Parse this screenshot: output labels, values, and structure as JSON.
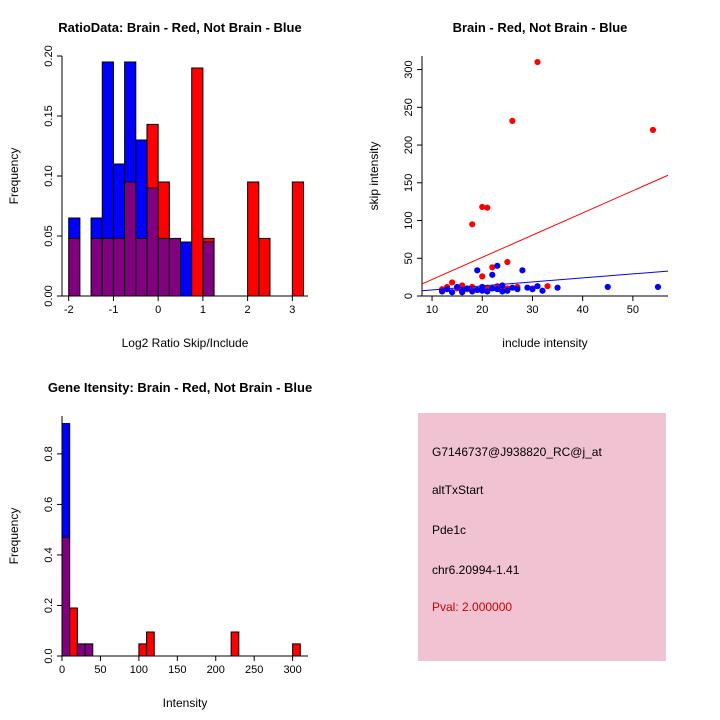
{
  "figure_bg": "#ffffff",
  "colors": {
    "red": "#FF0000",
    "blue": "#0000FF",
    "overlap": "#800080",
    "axis": "#000000"
  },
  "chart_data": [
    {
      "type": "bar",
      "kind": "overlaid-histogram",
      "title": "RatioData: Brain - Red, Not Brain - Blue",
      "xlabel": "Log2 Ratio Skip/Include",
      "ylabel": "Frequency",
      "xlim": [
        -2.15,
        3.35
      ],
      "ylim": [
        0,
        0.2
      ],
      "xticks": [
        -2,
        -1,
        0,
        1,
        2,
        3
      ],
      "xtick_labels": [
        "-2",
        "-1",
        "0",
        "1",
        "2",
        "3"
      ],
      "yticks": [
        0,
        0.05,
        0.1,
        0.15,
        0.2
      ],
      "ytick_labels": [
        "0.00",
        "0.05",
        "0.10",
        "0.15",
        "0.20"
      ],
      "grid": false,
      "bin_width": 0.25,
      "overlap_color": "#800080",
      "series": [
        {
          "name": "Brain",
          "color": "#FF0000"
        },
        {
          "name": "Not Brain",
          "color": "#0000FF"
        }
      ],
      "bins": [
        {
          "x": -2.0,
          "blue": 0.065,
          "red": 0.048
        },
        {
          "x": -1.5,
          "blue": 0.065,
          "red": 0.048
        },
        {
          "x": -1.25,
          "blue": 0.195,
          "red": 0.048
        },
        {
          "x": -1.0,
          "blue": 0.11,
          "red": 0.048
        },
        {
          "x": -0.75,
          "blue": 0.195,
          "red": 0.095
        },
        {
          "x": -0.5,
          "blue": 0.13,
          "red": 0.048
        },
        {
          "x": -0.25,
          "blue": 0.09,
          "red": 0.143
        },
        {
          "x": 0.0,
          "blue": 0.048,
          "red": 0.095
        },
        {
          "x": 0.25,
          "blue": 0.048,
          "red": 0.048
        },
        {
          "x": 0.5,
          "blue": 0.045,
          "red": 0
        },
        {
          "x": 0.75,
          "blue": 0,
          "red": 0.19
        },
        {
          "x": 1.0,
          "blue": 0.045,
          "red": 0.048
        },
        {
          "x": 2.0,
          "blue": 0,
          "red": 0.095
        },
        {
          "x": 2.25,
          "blue": 0,
          "red": 0.048
        },
        {
          "x": 3.0,
          "blue": 0,
          "red": 0.095
        }
      ]
    },
    {
      "type": "scatter",
      "title": "Brain - Red, Not Brain - Blue",
      "xlabel": "include intensity",
      "ylabel": "skip intensity",
      "xlim": [
        8,
        57
      ],
      "ylim": [
        0,
        318
      ],
      "xticks": [
        10,
        20,
        30,
        40,
        50
      ],
      "xtick_labels": [
        "10",
        "20",
        "30",
        "40",
        "50"
      ],
      "yticks": [
        0,
        50,
        100,
        150,
        200,
        250,
        300
      ],
      "ytick_labels": [
        "0",
        "50",
        "100",
        "150",
        "200",
        "250",
        "300"
      ],
      "grid": false,
      "series": [
        {
          "name": "Brain",
          "color": "#FF0000",
          "points": [
            [
              31,
              310
            ],
            [
              26,
              232
            ],
            [
              54,
              220
            ],
            [
              20,
              118
            ],
            [
              21,
              117
            ],
            [
              18,
              95
            ],
            [
              25,
              45
            ],
            [
              22,
              38
            ],
            [
              20,
              26
            ],
            [
              12,
              9
            ],
            [
              13,
              12
            ],
            [
              14,
              18
            ],
            [
              15,
              10
            ],
            [
              16,
              14
            ],
            [
              17,
              9
            ],
            [
              18,
              12
            ],
            [
              19,
              8
            ],
            [
              21,
              11
            ],
            [
              23,
              13
            ],
            [
              24,
              9
            ],
            [
              25,
              10
            ],
            [
              27,
              12
            ],
            [
              30,
              10
            ],
            [
              33,
              13
            ]
          ]
        },
        {
          "name": "Not Brain",
          "color": "#0000FF",
          "points": [
            [
              12,
              6
            ],
            [
              13,
              9
            ],
            [
              14,
              5
            ],
            [
              15,
              12
            ],
            [
              16,
              7
            ],
            [
              16,
              5
            ],
            [
              17,
              10
            ],
            [
              18,
              6
            ],
            [
              19,
              34
            ],
            [
              19,
              8
            ],
            [
              20,
              12
            ],
            [
              20,
              7
            ],
            [
              21,
              6
            ],
            [
              22,
              28
            ],
            [
              22,
              10
            ],
            [
              23,
              40
            ],
            [
              23,
              9
            ],
            [
              24,
              14
            ],
            [
              24,
              6
            ],
            [
              25,
              7
            ],
            [
              26,
              11
            ],
            [
              27,
              9
            ],
            [
              28,
              34
            ],
            [
              29,
              11
            ],
            [
              30,
              9
            ],
            [
              31,
              13
            ],
            [
              32,
              7
            ],
            [
              35,
              11
            ],
            [
              45,
              12
            ],
            [
              55,
              12
            ]
          ]
        }
      ],
      "lines": [
        {
          "name": "brain-fit-line",
          "color": "#FF0000",
          "x1": 8,
          "y1": 16,
          "x2": 57,
          "y2": 160
        },
        {
          "name": "not-brain-fit-line",
          "color": "#0000FF",
          "x1": 8,
          "y1": 7,
          "x2": 57,
          "y2": 33
        }
      ]
    },
    {
      "type": "bar",
      "kind": "overlaid-histogram",
      "title": "Gene Itensity: Brain - Red, Not Brain - Blue",
      "xlabel": "Intensity",
      "ylabel": "Frequency",
      "xlim": [
        0,
        320
      ],
      "ylim": [
        0,
        0.95
      ],
      "xticks": [
        0,
        50,
        100,
        150,
        200,
        250,
        300
      ],
      "xtick_labels": [
        "0",
        "50",
        "100",
        "150",
        "200",
        "250",
        "300"
      ],
      "yticks": [
        0,
        0.2,
        0.4,
        0.6,
        0.8
      ],
      "ytick_labels": [
        "0.0",
        "0.2",
        "0.4",
        "0.6",
        "0.8"
      ],
      "grid": false,
      "bin_width": 10,
      "overlap_color": "#800080",
      "series": [
        {
          "name": "Brain",
          "color": "#FF0000"
        },
        {
          "name": "Not Brain",
          "color": "#0000FF"
        }
      ],
      "bins": [
        {
          "x": 0,
          "blue": 0.92,
          "red": 0.47
        },
        {
          "x": 10,
          "blue": 0,
          "red": 0.19
        },
        {
          "x": 20,
          "blue": 0.048,
          "red": 0.048
        },
        {
          "x": 30,
          "blue": 0.048,
          "red": 0.048
        },
        {
          "x": 100,
          "blue": 0,
          "red": 0.048
        },
        {
          "x": 110,
          "blue": 0,
          "red": 0.095
        },
        {
          "x": 220,
          "blue": 0,
          "red": 0.095
        },
        {
          "x": 300,
          "blue": 0,
          "red": 0.048
        }
      ]
    }
  ],
  "info_panel": {
    "background": "#F1C2D1",
    "text_color": "#000000",
    "probe_id": "G7146737@J938820_RC@j_at",
    "event_type": "altTxStart",
    "gene": "Pde1c",
    "location": "chr6.20994-1.41",
    "pval": "Pval: 2.000000",
    "pval_color": "#CC0000"
  }
}
